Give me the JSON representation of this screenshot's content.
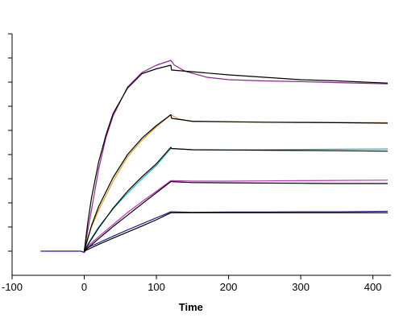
{
  "chart_data": {
    "type": "line",
    "title": "",
    "xlabel": "Time",
    "ylabel": "",
    "xlim": [
      -100,
      425
    ],
    "ylim": [
      -10,
      90
    ],
    "grid": false,
    "x_ticks": [
      {
        "value": -100,
        "label": "-100"
      },
      {
        "value": 0,
        "label": "0"
      },
      {
        "value": 100,
        "label": "100"
      },
      {
        "value": 200,
        "label": "200"
      },
      {
        "value": 300,
        "label": "300"
      },
      {
        "value": 400,
        "label": "400"
      }
    ],
    "y_ticks": [
      0,
      10,
      20,
      30,
      40,
      50,
      60,
      70,
      80,
      90
    ],
    "colors": {
      "measured": [
        "#1f1f8f",
        "#c033c0",
        "#20b2c0",
        "#d8a020",
        "#8a2a8a"
      ],
      "fit": "#000000",
      "axis": "#000000"
    },
    "series": [
      {
        "role": "measured",
        "color": "#1f1f8f",
        "x": [
          -60,
          -20,
          -5,
          0,
          5,
          20,
          40,
          60,
          80,
          100,
          120,
          150,
          200,
          250,
          300,
          350,
          420
        ],
        "y": [
          0,
          0,
          0,
          -0.5,
          1.5,
          3.5,
          6.2,
          8.8,
          11.3,
          13.8,
          16.3,
          16.1,
          16.2,
          16.2,
          16.3,
          16.3,
          16.5
        ]
      },
      {
        "role": "fit",
        "color": "#000000",
        "x": [
          0,
          20,
          40,
          60,
          80,
          100,
          120,
          121,
          150,
          200,
          250,
          300,
          350,
          420
        ],
        "y": [
          0,
          2.8,
          5.4,
          7.9,
          10.4,
          13.0,
          15.9,
          15.9,
          15.9,
          15.9,
          15.9,
          15.9,
          15.9,
          15.9
        ]
      },
      {
        "role": "measured",
        "color": "#c033c0",
        "x": [
          0,
          5,
          20,
          40,
          60,
          80,
          100,
          120,
          150,
          200,
          250,
          300,
          350,
          420
        ],
        "y": [
          0,
          2,
          6,
          11,
          16,
          20.5,
          24.8,
          29.2,
          29.0,
          29.0,
          29.1,
          29.2,
          29.3,
          29.4
        ]
      },
      {
        "role": "fit",
        "color": "#000000",
        "x": [
          0,
          20,
          40,
          60,
          80,
          100,
          120,
          121,
          150,
          200,
          250,
          300,
          350,
          420
        ],
        "y": [
          0,
          5.2,
          10.2,
          14.9,
          19.6,
          24.2,
          28.8,
          28.8,
          28.4,
          28.3,
          28.2,
          28.1,
          28.0,
          28.0
        ]
      },
      {
        "role": "measured",
        "color": "#20b2c0",
        "x": [
          0,
          5,
          20,
          40,
          60,
          80,
          100,
          120,
          150,
          200,
          250,
          300,
          350,
          420
        ],
        "y": [
          0,
          3,
          10,
          17.5,
          24,
          30,
          35.5,
          42.5,
          42.0,
          41.9,
          42.0,
          42.1,
          42.2,
          42.3
        ]
      },
      {
        "role": "fit",
        "color": "#000000",
        "x": [
          0,
          10,
          20,
          40,
          60,
          80,
          100,
          120,
          121,
          150,
          200,
          250,
          300,
          350,
          420
        ],
        "y": [
          0,
          5.0,
          9.6,
          17.8,
          24.8,
          30.8,
          36.2,
          43.0,
          42.5,
          42.0,
          41.9,
          41.8,
          41.7,
          41.6,
          41.4
        ]
      },
      {
        "role": "measured",
        "color": "#d8a020",
        "x": [
          0,
          5,
          10,
          20,
          40,
          60,
          80,
          100,
          120,
          130,
          150,
          200,
          250,
          300,
          350,
          420
        ],
        "y": [
          0,
          5,
          10,
          17,
          29,
          39,
          46,
          51.5,
          56.5,
          54.8,
          53.6,
          53.5,
          53.4,
          53.4,
          53.3,
          53.2
        ]
      },
      {
        "role": "fit",
        "color": "#000000",
        "x": [
          0,
          5,
          10,
          20,
          40,
          60,
          80,
          100,
          120,
          121,
          150,
          200,
          250,
          300,
          350,
          420
        ],
        "y": [
          0,
          5.5,
          10.5,
          18.5,
          30.5,
          40,
          46.8,
          52,
          56.5,
          55.0,
          53.8,
          53.6,
          53.4,
          53.3,
          53.2,
          53.0
        ]
      },
      {
        "role": "measured",
        "color": "#8a2a8a",
        "x": [
          0,
          5,
          10,
          20,
          30,
          40,
          60,
          80,
          100,
          120,
          125,
          140,
          170,
          200,
          250,
          300,
          350,
          420
        ],
        "y": [
          0,
          9,
          17,
          34,
          47,
          56,
          68,
          74,
          77,
          79,
          77,
          74.5,
          72,
          71,
          70.5,
          70.2,
          69.8,
          69.3
        ]
      },
      {
        "role": "fit",
        "color": "#000000",
        "x": [
          0,
          5,
          10,
          20,
          30,
          40,
          60,
          80,
          100,
          120,
          121,
          150,
          200,
          250,
          300,
          350,
          420
        ],
        "y": [
          0,
          12,
          22,
          37,
          48,
          57,
          67.5,
          73.5,
          75.5,
          77,
          75,
          74.3,
          73,
          72,
          71,
          70.5,
          69.6
        ]
      }
    ]
  }
}
